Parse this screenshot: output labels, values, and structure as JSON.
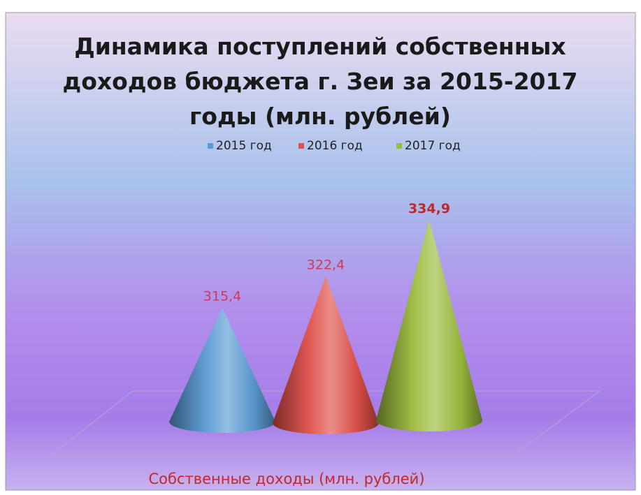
{
  "chart_data": {
    "type": "bar",
    "style": "3d-cone",
    "title": "Динамика поступлений собственных доходов бюджета г. Зеи за 2015-2017 годы (млн. рублей)",
    "title_lines": [
      "Динамика поступлений собственных",
      "доходов бюджета г. Зеи за 2015-2017",
      "годы (млн. рублей)"
    ],
    "categories": [
      "Собственные доходы (млн. рублей)"
    ],
    "xlabel": "Собственные доходы (млн. рублей)",
    "legend_position": "top",
    "grid": false,
    "series": [
      {
        "name": "2015 год",
        "values": [
          315.4
        ],
        "label": "315,4",
        "color": "#5b9bd5",
        "label_color": "#d0385a"
      },
      {
        "name": "2016 год",
        "values": [
          322.4
        ],
        "label": "322,4",
        "color": "#e0504a",
        "label_color": "#d0385a"
      },
      {
        "name": "2017 год",
        "values": [
          334.9
        ],
        "label": "334,9",
        "color": "#9bbb3c",
        "label_color": "#c0282a"
      }
    ],
    "axis_color": "#c0282a",
    "background_colors": [
      "#eadcf0",
      "#a9c2ec",
      "#a57ce8"
    ]
  }
}
